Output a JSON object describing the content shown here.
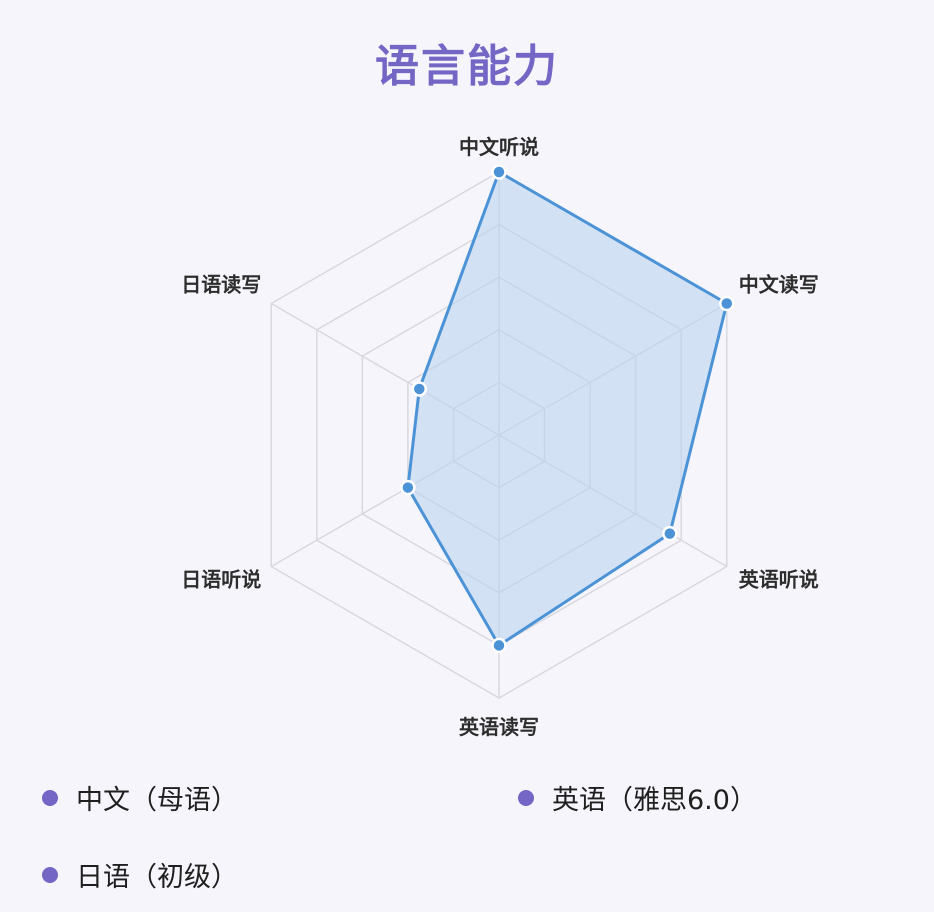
{
  "title": "语言能力",
  "colors": {
    "title": "#7466c4",
    "series_line": "#4b93d6",
    "series_fill": "#bcd3f0",
    "grid": "#d8d8e0",
    "legend_dot": "#7466c4"
  },
  "chart_data": {
    "type": "radar",
    "axes": [
      "中文听说",
      "中文读写",
      "英语听说",
      "英语读写",
      "日语听说",
      "日语读写"
    ],
    "range": [
      0,
      100
    ],
    "grid_levels": 5,
    "series": [
      {
        "values": [
          100,
          100,
          75,
          80,
          40,
          35
        ]
      }
    ]
  },
  "legend": [
    {
      "label": "中文（母语）"
    },
    {
      "label": "英语（雅思6.0）"
    },
    {
      "label": "日语（初级）"
    }
  ]
}
